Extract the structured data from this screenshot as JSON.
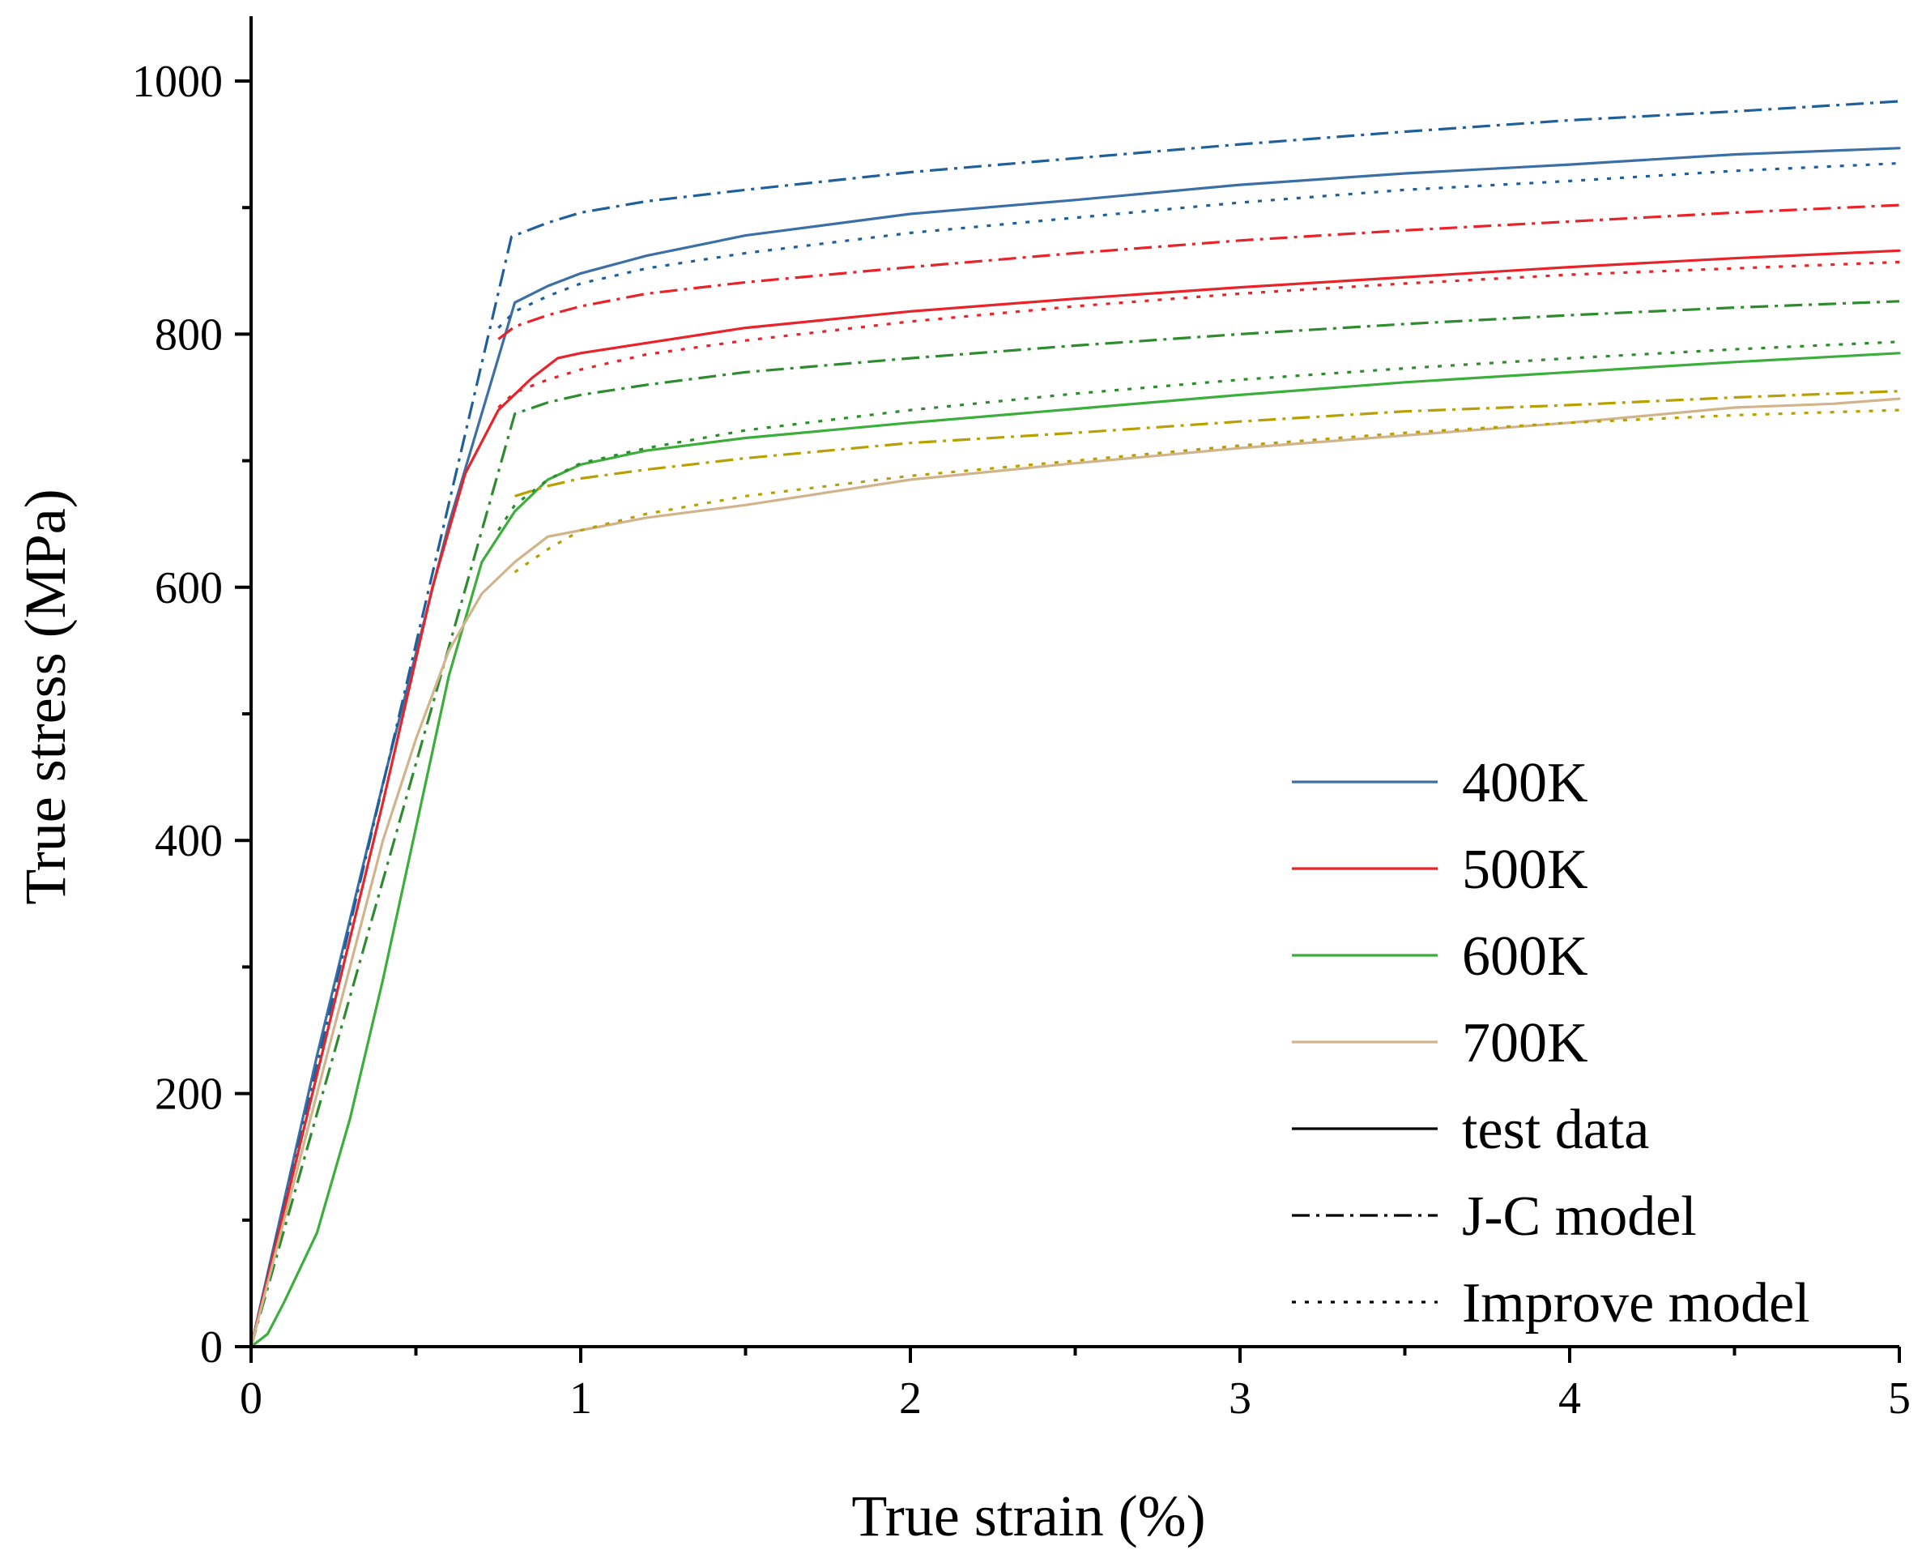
{
  "chart_data": {
    "type": "line",
    "title": "",
    "xlabel": "True strain (%)",
    "ylabel": "True stress (MPa)",
    "xlim": [
      0,
      5
    ],
    "ylim": [
      0,
      1000
    ],
    "xticks": [
      0,
      1,
      2,
      3,
      4,
      5
    ],
    "yticks": [
      0,
      200,
      400,
      600,
      800,
      1000
    ],
    "grid": false,
    "legend_position": "bottom-right",
    "legend": {
      "colors": [
        {
          "label": "400K",
          "color": "#3b6fa6"
        },
        {
          "label": "500K",
          "color": "#e8232a"
        },
        {
          "label": "600K",
          "color": "#3cae3c"
        },
        {
          "label": "700K",
          "color": "#d2b48c"
        }
      ],
      "styles": [
        {
          "label": "test data",
          "dash": "solid"
        },
        {
          "label": "J-C model",
          "dash": "dashdot"
        },
        {
          "label": "Improve model",
          "dash": "dot"
        }
      ]
    },
    "series": [
      {
        "name": "400K test data",
        "color": "#3b6fa6",
        "dash": "solid",
        "x": [
          0,
          0.2,
          0.4,
          0.6,
          0.8,
          0.9,
          1.0,
          1.2,
          1.5,
          2.0,
          2.5,
          3.0,
          3.5,
          4.0,
          4.5,
          5.0
        ],
        "y": [
          0,
          230,
          445,
          650,
          825,
          838,
          848,
          862,
          878,
          895,
          906,
          918,
          927,
          934,
          942,
          947
        ]
      },
      {
        "name": "400K J-C model",
        "color": "#1f5f9a",
        "dash": "dashdot",
        "x": [
          0,
          0.79,
          0.9,
          1.0,
          1.2,
          1.5,
          2.0,
          2.5,
          3.0,
          3.5,
          4.0,
          4.5,
          5.0
        ],
        "y": [
          0,
          877,
          888,
          896,
          905,
          914,
          928,
          939,
          950,
          960,
          969,
          976,
          984
        ]
      },
      {
        "name": "400K Improve model",
        "color": "#1f5f9a",
        "dash": "dot",
        "x": [
          0.75,
          0.8,
          0.9,
          1.0,
          1.2,
          1.5,
          2.0,
          2.5,
          3.0,
          3.5,
          4.0,
          4.5,
          5.0
        ],
        "y": [
          805,
          818,
          830,
          840,
          852,
          864,
          880,
          892,
          904,
          914,
          921,
          929,
          935
        ]
      },
      {
        "name": "500K test data",
        "color": "#e8232a",
        "dash": "solid",
        "x": [
          0,
          0.2,
          0.4,
          0.55,
          0.65,
          0.75,
          0.85,
          0.93,
          1.0,
          1.2,
          1.5,
          2.0,
          2.5,
          3.0,
          3.5,
          4.0,
          4.5,
          5.0
        ],
        "y": [
          0,
          215,
          430,
          600,
          690,
          740,
          765,
          781,
          785,
          793,
          805,
          818,
          828,
          837,
          845,
          853,
          860,
          866
        ]
      },
      {
        "name": "500K J-C model",
        "color": "#e8232a",
        "dash": "dashdot",
        "x": [
          0.75,
          0.8,
          0.9,
          1.0,
          1.2,
          1.5,
          2.0,
          2.5,
          3.0,
          3.5,
          4.0,
          4.5,
          5.0
        ],
        "y": [
          796,
          806,
          815,
          822,
          832,
          841,
          853,
          864,
          874,
          882,
          889,
          896,
          902
        ]
      },
      {
        "name": "500K Improve model",
        "color": "#e8232a",
        "dash": "dot",
        "x": [
          0.75,
          0.8,
          0.9,
          1.0,
          1.2,
          1.5,
          2.0,
          2.5,
          3.0,
          3.5,
          4.0,
          4.5,
          5.0
        ],
        "y": [
          742,
          754,
          764,
          772,
          784,
          795,
          810,
          822,
          832,
          840,
          847,
          852,
          857
        ]
      },
      {
        "name": "600K test data",
        "color": "#3cae3c",
        "dash": "solid",
        "x": [
          0,
          0.05,
          0.1,
          0.2,
          0.3,
          0.4,
          0.5,
          0.6,
          0.7,
          0.8,
          0.9,
          1.0,
          1.2,
          1.5,
          2.0,
          2.5,
          3.0,
          3.5,
          4.0,
          4.5,
          5.0
        ],
        "y": [
          0,
          10,
          35,
          90,
          180,
          290,
          410,
          530,
          620,
          660,
          685,
          697,
          708,
          718,
          730,
          741,
          752,
          762,
          770,
          778,
          785
        ]
      },
      {
        "name": "600K J-C model",
        "color": "#2e8b2e",
        "dash": "dashdot",
        "x": [
          0,
          0.8,
          0.9,
          1.0,
          1.2,
          1.5,
          2.0,
          2.5,
          3.0,
          3.5,
          4.0,
          4.5,
          5.0
        ],
        "y": [
          0,
          737,
          746,
          752,
          760,
          770,
          781,
          791,
          800,
          808,
          815,
          821,
          826
        ]
      },
      {
        "name": "600K Improve model",
        "color": "#2e8b2e",
        "dash": "dot",
        "x": [
          0.75,
          0.8,
          0.9,
          1.0,
          1.2,
          1.5,
          2.0,
          2.5,
          3.0,
          3.5,
          4.0,
          4.5,
          5.0
        ],
        "y": [
          645,
          665,
          685,
          698,
          710,
          724,
          740,
          753,
          764,
          773,
          781,
          788,
          794
        ]
      },
      {
        "name": "700K test data",
        "color": "#d2b48c",
        "dash": "solid",
        "x": [
          0,
          0.2,
          0.4,
          0.5,
          0.6,
          0.7,
          0.8,
          0.9,
          1.0,
          1.2,
          1.5,
          2.0,
          2.5,
          3.0,
          3.5,
          4.0,
          4.5,
          4.8,
          5.0
        ],
        "y": [
          0,
          200,
          400,
          480,
          550,
          595,
          620,
          640,
          645,
          655,
          665,
          685,
          698,
          710,
          720,
          730,
          742,
          745,
          749
        ]
      },
      {
        "name": "700K J-C model",
        "color": "#b8a000",
        "dash": "dashdot",
        "x": [
          0.8,
          0.9,
          1.0,
          1.2,
          1.5,
          2.0,
          2.5,
          3.0,
          3.5,
          4.0,
          4.5,
          5.0
        ],
        "y": [
          672,
          680,
          686,
          693,
          702,
          714,
          722,
          731,
          739,
          744,
          750,
          755
        ]
      },
      {
        "name": "700K Improve model",
        "color": "#b8a000",
        "dash": "dot",
        "x": [
          0.8,
          0.9,
          1.0,
          1.2,
          1.5,
          2.0,
          2.5,
          3.0,
          3.5,
          4.0,
          4.5,
          5.0
        ],
        "y": [
          612,
          630,
          645,
          658,
          672,
          688,
          700,
          712,
          722,
          730,
          736,
          740
        ]
      }
    ]
  }
}
